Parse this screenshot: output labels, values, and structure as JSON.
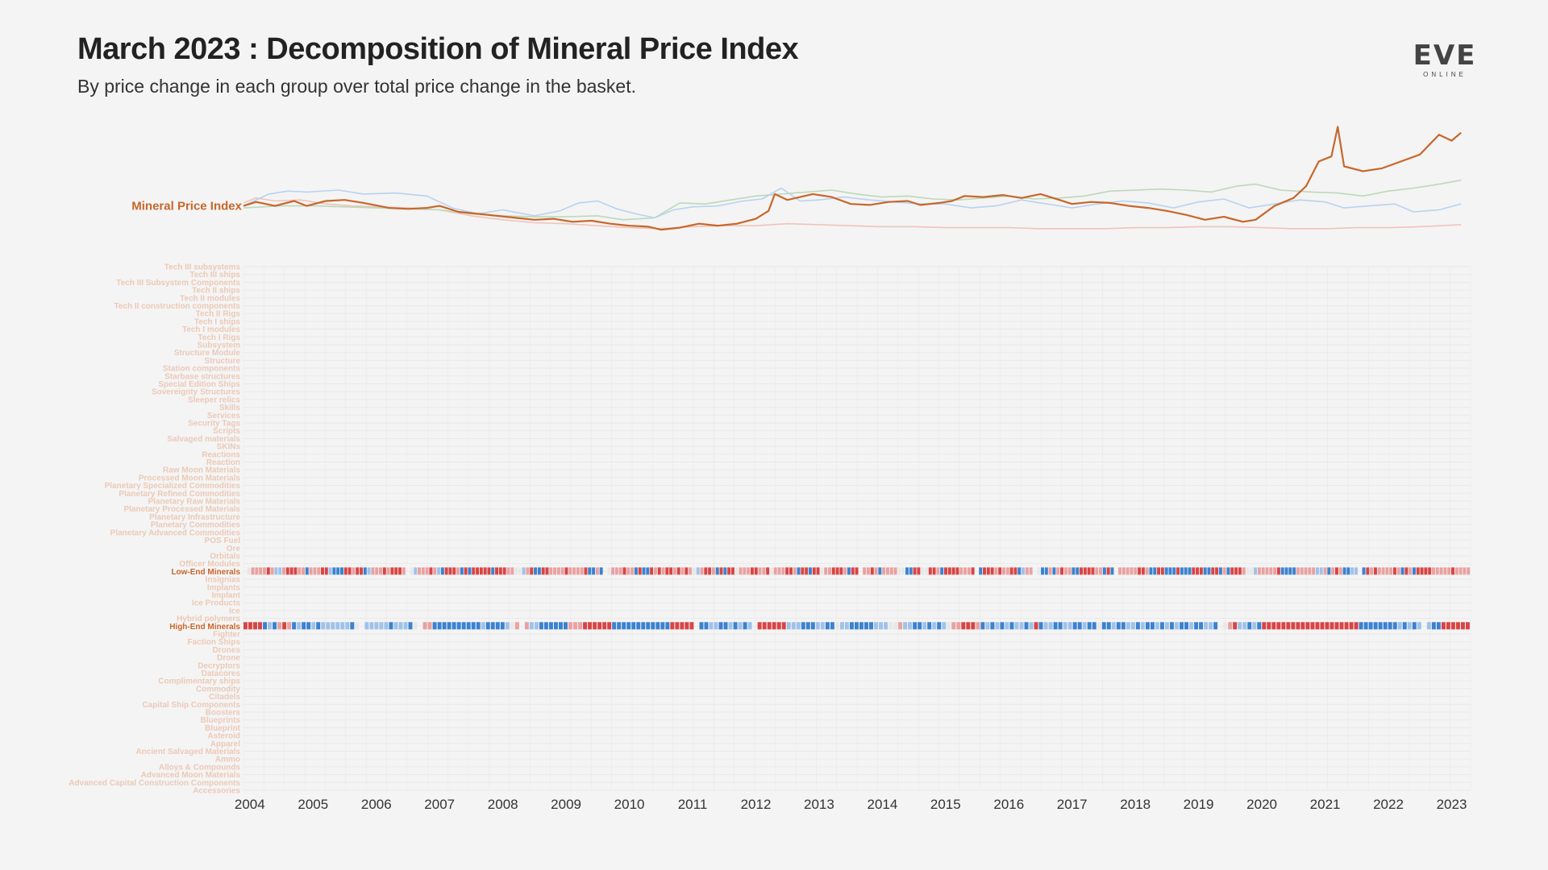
{
  "header": {
    "title": "March 2023 : Decomposition of Mineral Price Index",
    "subtitle": "By price change in each group over total price change in the basket."
  },
  "logo": {
    "word": "EVE",
    "sub": "ONLINE"
  },
  "colors": {
    "index_line": "#c8662a",
    "highlight_label": "#c8662a",
    "faded_label": "#ecc9b6",
    "positive": "#d94444",
    "negative": "#3b82d0",
    "neutral": "#e8e8e8",
    "context_blue": "#b9d2ef",
    "context_green": "#bcd9b8",
    "context_red": "#f0c3b8",
    "axis_text": "#333333",
    "grid": "#e9e9e9"
  },
  "chart_data": {
    "type": "line+heatmap",
    "line_label": "Mineral Price Index",
    "x_axis": {
      "ticks": [
        "2004",
        "2005",
        "2006",
        "2007",
        "2008",
        "2009",
        "2010",
        "2011",
        "2012",
        "2013",
        "2014",
        "2015",
        "2016",
        "2017",
        "2018",
        "2019",
        "2020",
        "2021",
        "2022",
        "2023"
      ],
      "start": 2003.9,
      "end": 2023.3
    },
    "series": [
      {
        "role": "index",
        "points": [
          [
            2003.9,
            1.0
          ],
          [
            2004.1,
            1.04
          ],
          [
            2004.4,
            1.0
          ],
          [
            2004.7,
            1.05
          ],
          [
            2004.9,
            1.0
          ],
          [
            2005.2,
            1.05
          ],
          [
            2005.5,
            1.06
          ],
          [
            2005.8,
            1.03
          ],
          [
            2006.2,
            0.98
          ],
          [
            2006.5,
            0.97
          ],
          [
            2006.8,
            0.98
          ],
          [
            2007.0,
            1.0
          ],
          [
            2007.3,
            0.94
          ],
          [
            2007.6,
            0.92
          ],
          [
            2007.9,
            0.9
          ],
          [
            2008.2,
            0.88
          ],
          [
            2008.5,
            0.86
          ],
          [
            2008.8,
            0.87
          ],
          [
            2009.1,
            0.84
          ],
          [
            2009.4,
            0.85
          ],
          [
            2009.7,
            0.82
          ],
          [
            2010.0,
            0.8
          ],
          [
            2010.3,
            0.79
          ],
          [
            2010.5,
            0.76
          ],
          [
            2010.8,
            0.78
          ],
          [
            2011.1,
            0.82
          ],
          [
            2011.4,
            0.8
          ],
          [
            2011.7,
            0.82
          ],
          [
            2012.0,
            0.87
          ],
          [
            2012.2,
            0.95
          ],
          [
            2012.3,
            1.12
          ],
          [
            2012.5,
            1.06
          ],
          [
            2012.9,
            1.12
          ],
          [
            2013.2,
            1.09
          ],
          [
            2013.5,
            1.02
          ],
          [
            2013.8,
            1.01
          ],
          [
            2014.1,
            1.04
          ],
          [
            2014.4,
            1.05
          ],
          [
            2014.6,
            1.01
          ],
          [
            2014.9,
            1.03
          ],
          [
            2015.1,
            1.05
          ],
          [
            2015.3,
            1.1
          ],
          [
            2015.6,
            1.09
          ],
          [
            2015.9,
            1.11
          ],
          [
            2016.2,
            1.08
          ],
          [
            2016.5,
            1.12
          ],
          [
            2016.8,
            1.06
          ],
          [
            2017.0,
            1.02
          ],
          [
            2017.3,
            1.04
          ],
          [
            2017.6,
            1.03
          ],
          [
            2017.9,
            1.0
          ],
          [
            2018.2,
            0.98
          ],
          [
            2018.5,
            0.95
          ],
          [
            2018.8,
            0.91
          ],
          [
            2019.1,
            0.86
          ],
          [
            2019.4,
            0.89
          ],
          [
            2019.7,
            0.84
          ],
          [
            2019.9,
            0.86
          ],
          [
            2020.2,
            1.0
          ],
          [
            2020.5,
            1.08
          ],
          [
            2020.7,
            1.2
          ],
          [
            2020.9,
            1.45
          ],
          [
            2021.1,
            1.5
          ],
          [
            2021.2,
            1.8
          ],
          [
            2021.3,
            1.4
          ],
          [
            2021.6,
            1.35
          ],
          [
            2021.9,
            1.38
          ],
          [
            2022.2,
            1.45
          ],
          [
            2022.5,
            1.52
          ],
          [
            2022.8,
            1.72
          ],
          [
            2023.0,
            1.66
          ],
          [
            2023.15,
            1.74
          ]
        ]
      },
      {
        "role": "context-blue",
        "points": [
          [
            2003.9,
            1.0
          ],
          [
            2004.3,
            1.12
          ],
          [
            2004.6,
            1.15
          ],
          [
            2004.9,
            1.14
          ],
          [
            2005.4,
            1.16
          ],
          [
            2005.8,
            1.12
          ],
          [
            2006.3,
            1.13
          ],
          [
            2006.8,
            1.1
          ],
          [
            2007.2,
            0.98
          ],
          [
            2007.6,
            0.92
          ],
          [
            2008.0,
            0.96
          ],
          [
            2008.5,
            0.9
          ],
          [
            2008.9,
            0.95
          ],
          [
            2009.2,
            1.03
          ],
          [
            2009.5,
            1.05
          ],
          [
            2009.8,
            0.97
          ],
          [
            2010.1,
            0.92
          ],
          [
            2010.4,
            0.88
          ],
          [
            2010.7,
            0.96
          ],
          [
            2011.0,
            0.99
          ],
          [
            2011.4,
            1.0
          ],
          [
            2011.8,
            1.05
          ],
          [
            2012.1,
            1.07
          ],
          [
            2012.4,
            1.18
          ],
          [
            2012.7,
            1.05
          ],
          [
            2013.0,
            1.06
          ],
          [
            2013.4,
            1.09
          ],
          [
            2013.8,
            1.06
          ],
          [
            2014.2,
            1.04
          ],
          [
            2014.6,
            1.02
          ],
          [
            2015.0,
            1.02
          ],
          [
            2015.4,
            0.98
          ],
          [
            2015.8,
            1.0
          ],
          [
            2016.2,
            1.06
          ],
          [
            2016.6,
            1.02
          ],
          [
            2017.0,
            0.98
          ],
          [
            2017.4,
            1.02
          ],
          [
            2017.8,
            1.05
          ],
          [
            2018.2,
            1.03
          ],
          [
            2018.6,
            0.98
          ],
          [
            2019.0,
            1.04
          ],
          [
            2019.4,
            1.07
          ],
          [
            2019.8,
            0.98
          ],
          [
            2020.2,
            1.02
          ],
          [
            2020.6,
            1.06
          ],
          [
            2021.0,
            1.04
          ],
          [
            2021.3,
            0.98
          ],
          [
            2021.7,
            1.0
          ],
          [
            2022.1,
            1.02
          ],
          [
            2022.4,
            0.94
          ],
          [
            2022.8,
            0.96
          ],
          [
            2023.15,
            1.02
          ]
        ]
      },
      {
        "role": "context-green",
        "points": [
          [
            2003.9,
            0.98
          ],
          [
            2004.5,
            1.0
          ],
          [
            2005.0,
            1.0
          ],
          [
            2005.5,
            0.99
          ],
          [
            2006.0,
            0.98
          ],
          [
            2006.5,
            0.97
          ],
          [
            2007.0,
            0.96
          ],
          [
            2007.5,
            0.92
          ],
          [
            2008.0,
            0.9
          ],
          [
            2008.5,
            0.89
          ],
          [
            2009.0,
            0.89
          ],
          [
            2009.5,
            0.9
          ],
          [
            2009.9,
            0.86
          ],
          [
            2010.4,
            0.88
          ],
          [
            2010.8,
            1.03
          ],
          [
            2011.2,
            1.02
          ],
          [
            2011.6,
            1.06
          ],
          [
            2012.0,
            1.1
          ],
          [
            2012.4,
            1.12
          ],
          [
            2012.8,
            1.14
          ],
          [
            2013.2,
            1.16
          ],
          [
            2013.6,
            1.12
          ],
          [
            2014.0,
            1.09
          ],
          [
            2014.4,
            1.1
          ],
          [
            2014.8,
            1.07
          ],
          [
            2015.2,
            1.06
          ],
          [
            2015.6,
            1.08
          ],
          [
            2016.0,
            1.1
          ],
          [
            2016.4,
            1.07
          ],
          [
            2016.8,
            1.08
          ],
          [
            2017.2,
            1.1
          ],
          [
            2017.6,
            1.15
          ],
          [
            2018.0,
            1.16
          ],
          [
            2018.4,
            1.17
          ],
          [
            2018.8,
            1.16
          ],
          [
            2019.2,
            1.14
          ],
          [
            2019.6,
            1.2
          ],
          [
            2019.9,
            1.22
          ],
          [
            2020.3,
            1.16
          ],
          [
            2020.8,
            1.14
          ],
          [
            2021.2,
            1.13
          ],
          [
            2021.6,
            1.1
          ],
          [
            2022.0,
            1.15
          ],
          [
            2022.4,
            1.18
          ],
          [
            2022.8,
            1.22
          ],
          [
            2023.15,
            1.26
          ]
        ]
      },
      {
        "role": "context-red",
        "points": [
          [
            2003.9,
            1.03
          ],
          [
            2004.1,
            1.08
          ],
          [
            2004.4,
            1.05
          ],
          [
            2004.8,
            1.06
          ],
          [
            2005.2,
            1.02
          ],
          [
            2005.6,
            1.0
          ],
          [
            2006.0,
            0.99
          ],
          [
            2006.5,
            0.98
          ],
          [
            2007.0,
            0.96
          ],
          [
            2007.5,
            0.9
          ],
          [
            2008.0,
            0.86
          ],
          [
            2008.5,
            0.83
          ],
          [
            2009.0,
            0.82
          ],
          [
            2009.5,
            0.8
          ],
          [
            2010.0,
            0.78
          ],
          [
            2010.5,
            0.77
          ],
          [
            2011.0,
            0.79
          ],
          [
            2011.5,
            0.8
          ],
          [
            2012.0,
            0.8
          ],
          [
            2012.5,
            0.82
          ],
          [
            2013.0,
            0.81
          ],
          [
            2013.5,
            0.8
          ],
          [
            2014.0,
            0.79
          ],
          [
            2014.5,
            0.79
          ],
          [
            2015.0,
            0.78
          ],
          [
            2015.5,
            0.78
          ],
          [
            2016.0,
            0.78
          ],
          [
            2016.5,
            0.77
          ],
          [
            2017.0,
            0.77
          ],
          [
            2017.5,
            0.77
          ],
          [
            2018.0,
            0.78
          ],
          [
            2018.5,
            0.78
          ],
          [
            2019.0,
            0.79
          ],
          [
            2019.5,
            0.79
          ],
          [
            2020.0,
            0.78
          ],
          [
            2020.5,
            0.77
          ],
          [
            2021.0,
            0.77
          ],
          [
            2021.5,
            0.78
          ],
          [
            2022.0,
            0.78
          ],
          [
            2022.5,
            0.79
          ],
          [
            2023.15,
            0.81
          ]
        ]
      }
    ],
    "categories": [
      "Tech III subsystems",
      "Tech III ships",
      "Tech III Subsystem Components",
      "Tech II ships",
      "Tech II modules",
      "Tech II construction components",
      "Tech II Rigs",
      "Tech I ships",
      "Tech I modules",
      "Tech I Rigs",
      "Subsystem",
      "Structure Module",
      "Structure",
      "Station components",
      "Starbase structures",
      "Special Edition Ships",
      "Sovereignty Structures",
      "Sleeper relics",
      "Skills",
      "Services",
      "Security Tags",
      "Scripts",
      "Salvaged materials",
      "SKINs",
      "Reactions",
      "Reaction",
      "Raw Moon Materials",
      "Processed Moon Materials",
      "Planetary Specialized Commodities",
      "Planetary Refined Commodities",
      "Planetary Raw Materials",
      "Planetary Processed Materials",
      "Planetary Infrastructure",
      "Planetary Commodities",
      "Planetary Advanced Commodities",
      "POS Fuel",
      "Ore",
      "Orbitals",
      "Officer Modules",
      "Low-End Minerals",
      "Insignias",
      "Implants",
      "Implant",
      "Ice Products",
      "Ice",
      "Hybrid polymers",
      "High-End Minerals",
      "Fighter",
      "Faction Ships",
      "Drones",
      "Drone",
      "Decryptors",
      "Datacores",
      "Complimentary ships",
      "Commodity",
      "Citadels",
      "Capital Ship Components",
      "Boosters",
      "Blueprints",
      "Blueprint",
      "Asteroid",
      "Apparel",
      "Ancient Salvaged Materials",
      "Ammo",
      "Alloys & Compounds",
      "Advanced Moon Materials",
      "Advanced Capital Construction Components",
      "Accessories"
    ],
    "highlighted_categories": [
      "Low-End Minerals",
      "High-End Minerals"
    ],
    "heatmap_rows": [
      {
        "category": "Low-End Minerals",
        "pattern": "00111121-1-1122211-211122-1-2-2-222122-2-111121222100-111121-1-22221-22-222222-22221100-112-2-2221111211112-2-21-200111211-22-2-2212122121210-11221-22-2220111221120111221-222-2220112221-22201121-2111100-2-22200221-2222211120-2222121122-2-11100-2-21-21211-2-2222211-22-2011111221-2-222-2-2-22-2-2-2222-2-222-21-2222100-1111112-2-2-2-211111-1-11-2121-2-2-1-10-2212111121-221-222221111121111"
      },
      {
        "category": "High-End Minerals",
        "pattern": "2222-2-1-2121-2-1-2-2-1-2-1-1-1-1-1-1-200-1-1-1-1-1-2-1-1-1-20011-2-2-2-2-2-2-2-2-2-2-1-2-2-2-2-10101-1-1-2-2-2-2-2-2111222222-2-2-2-2-2-2-2-2-2-2-2-2222220-2-2-1-1-2-2-1-2-1-2-10222222-1-1-1-2-2-2-1-1-2-20-1-1-2-2-2-2-2-1-1-1001-1-1-2-2-1-2-1-2-10112221-2-1-2-1-2-1-2-1-1-2-12-2-1-1-2-2-1-1-2-2-1-2-20-2-2-1-2-2-1-1-2-1-2-2-1-2-1-2-1-2-2-1-2-2-1-1-20012-1-1-2-1-222222222222222222222-2-2-2-2-2-2-2-2-1-2-1-2-10-1-2-2222222"
      }
    ]
  }
}
